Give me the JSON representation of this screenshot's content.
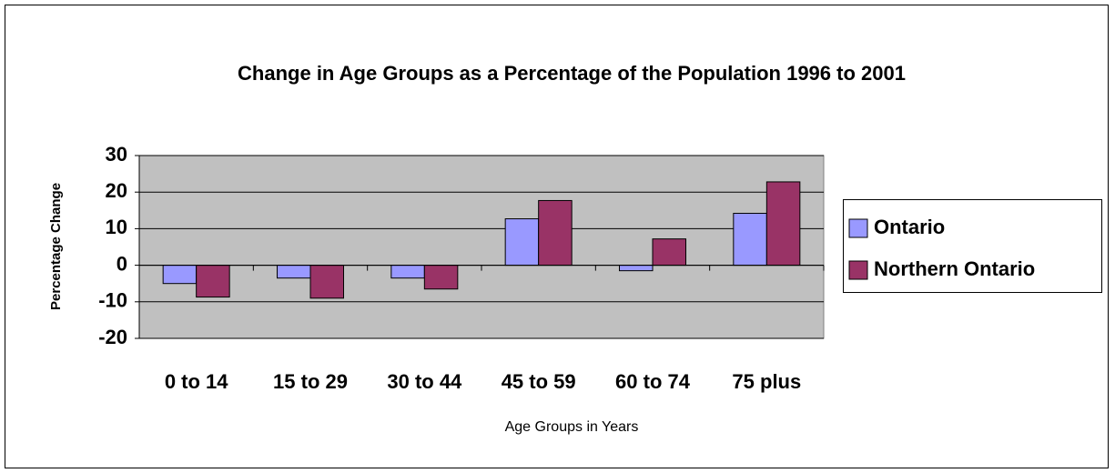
{
  "chart_data": {
    "type": "bar",
    "title": "Change in Age Groups as a Percentage of the Population 1996 to 2001",
    "x_label": "Age Groups in Years",
    "y_label": "Percentage Change",
    "categories": [
      "0 to 14",
      "15 to 29",
      "30 to 44",
      "45 to 59",
      "60 to 74",
      "75 plus"
    ],
    "series": [
      {
        "name": "Ontario",
        "color": "#9999ff",
        "values": [
          -5,
          -3.5,
          -3.5,
          12.7,
          -1.5,
          14.2
        ]
      },
      {
        "name": "Northern Ontario",
        "color": "#993366",
        "values": [
          -8.7,
          -9,
          -6.5,
          17.7,
          7.2,
          22.8
        ]
      }
    ],
    "ylim": [
      -20,
      30
    ],
    "yticks": [
      -20,
      -10,
      0,
      10,
      20,
      30
    ],
    "grid": true,
    "legend": "right"
  }
}
